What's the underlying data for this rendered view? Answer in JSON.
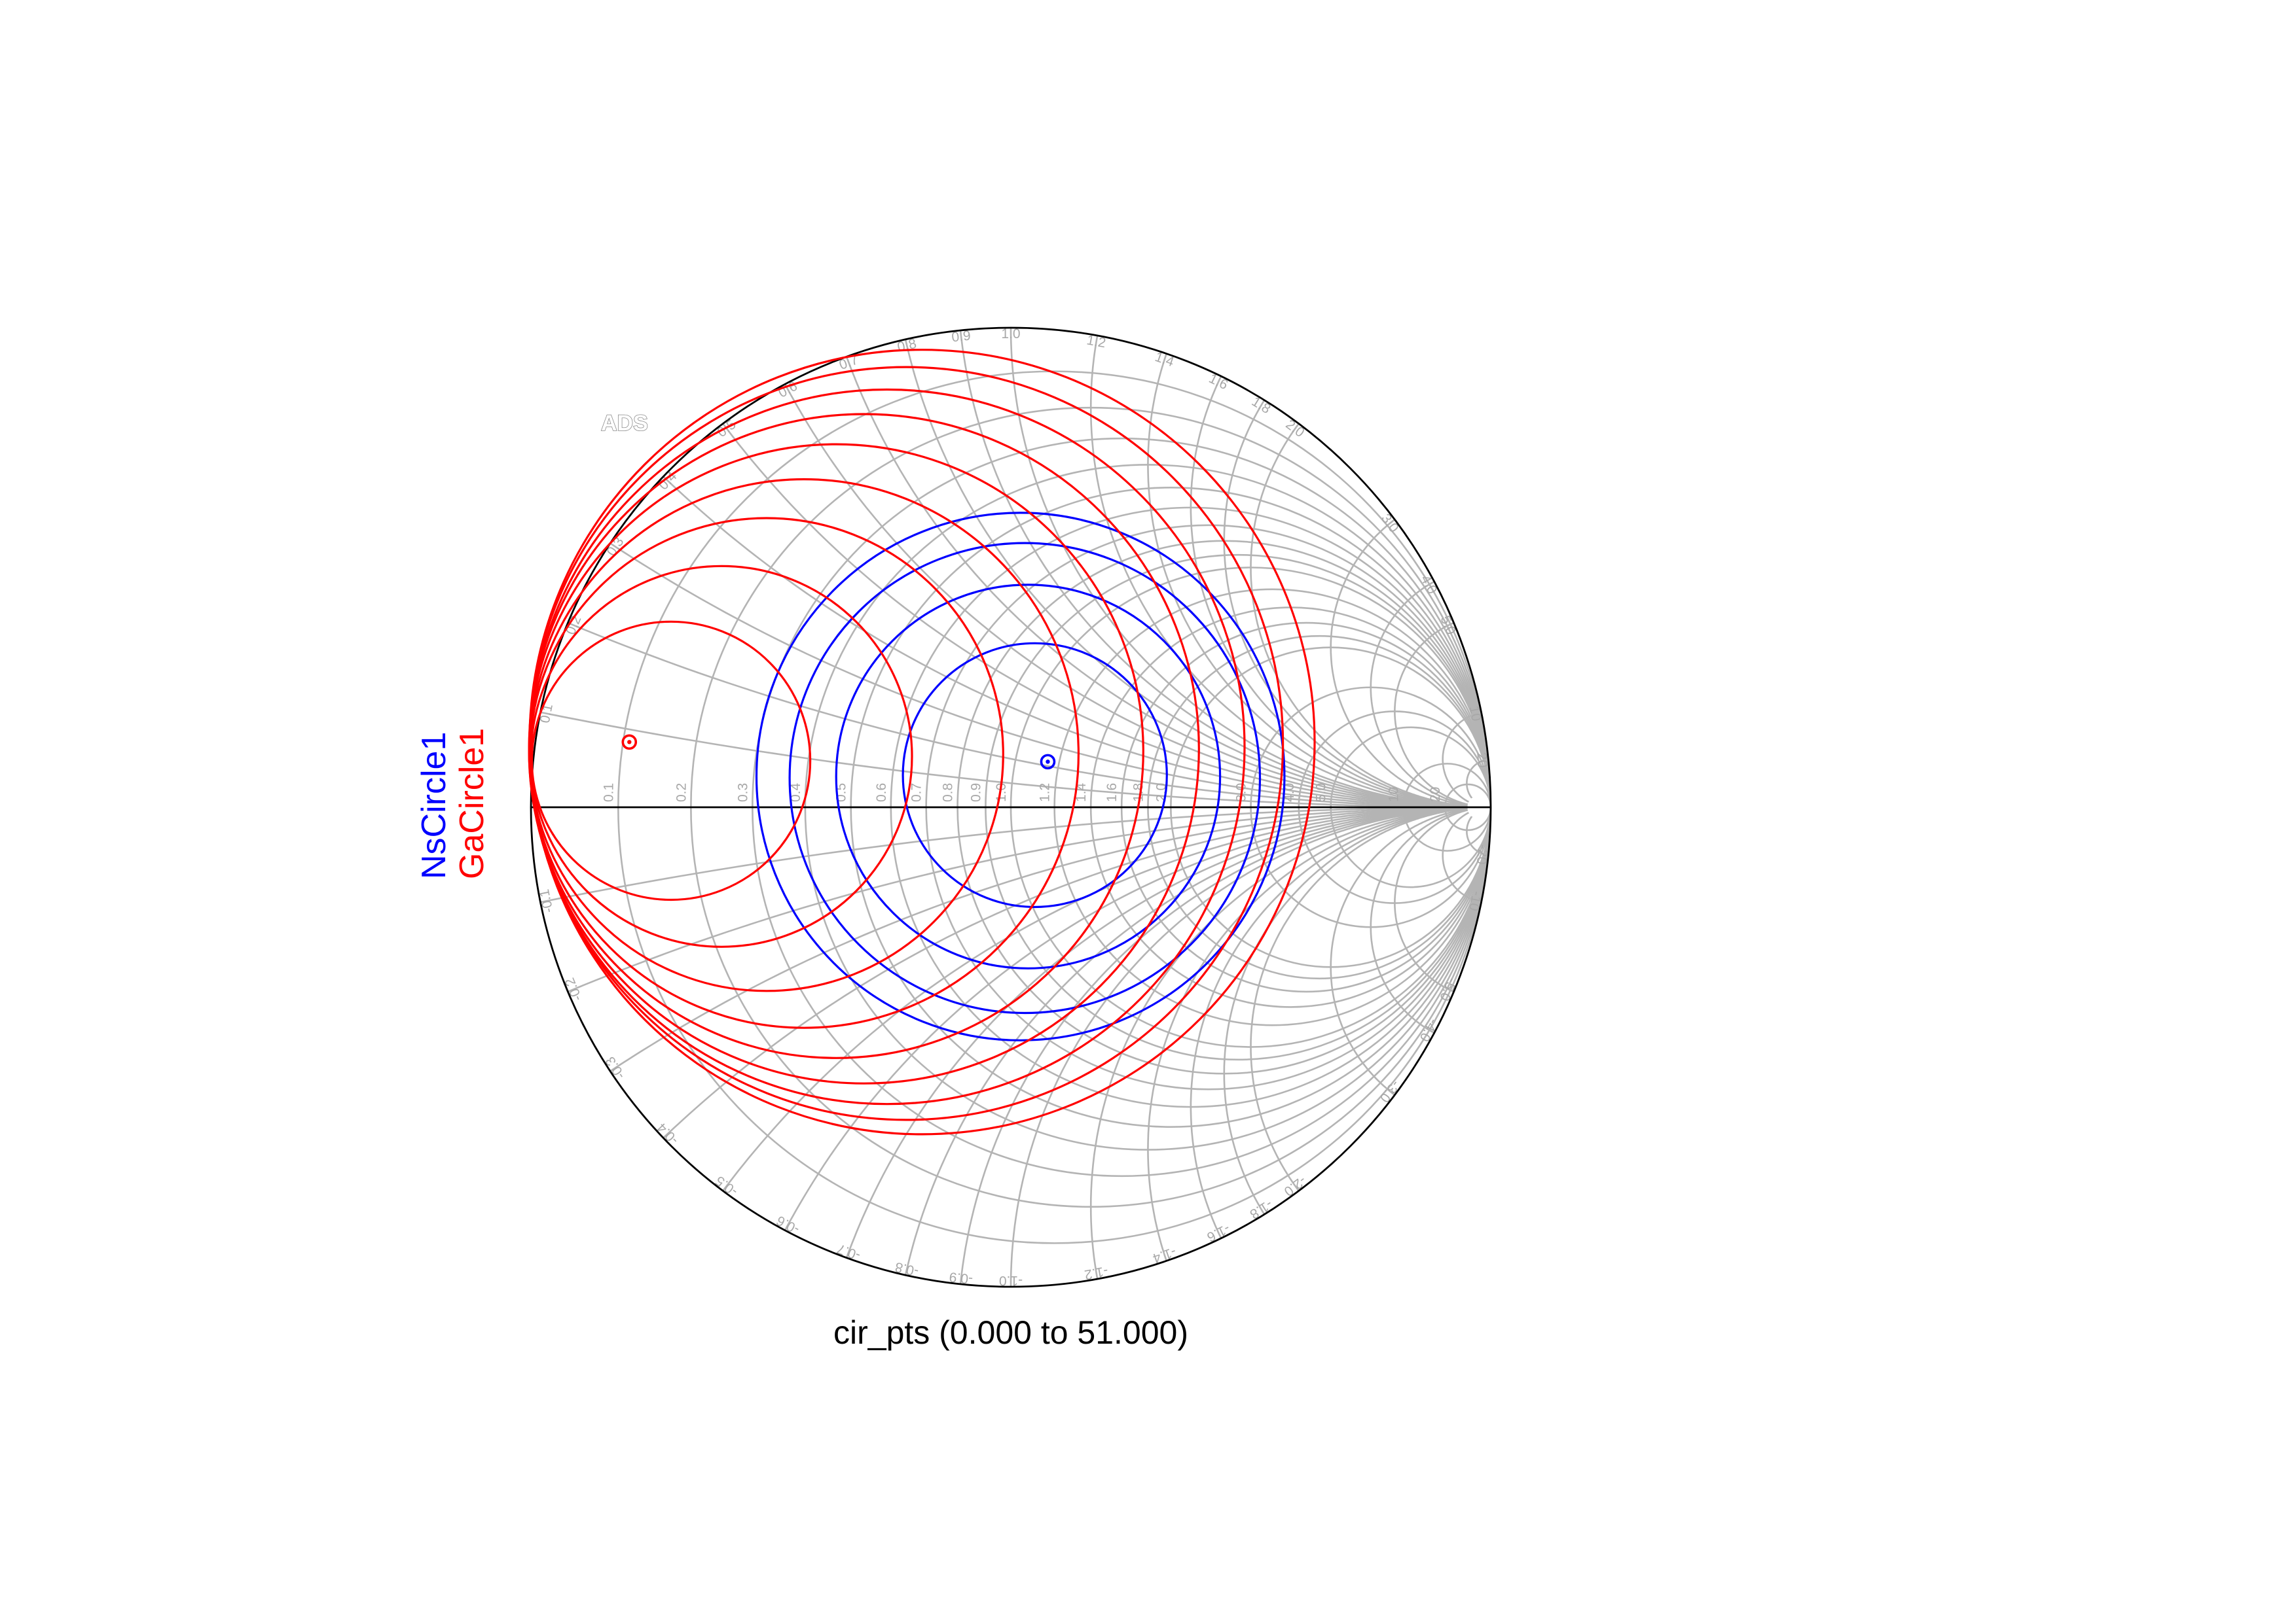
{
  "chart_data": {
    "type": "smith",
    "title": "",
    "watermark": "ADS",
    "xlabel": "cir_pts (0.000 to 51.000)",
    "sweep": {
      "name": "cir_pts",
      "start": 0.0,
      "stop": 51.0
    },
    "grid": true,
    "legend": {
      "position": "left",
      "orientation": "vertical"
    },
    "resistance_ticks": [
      "0.1",
      "0.2",
      "0.3",
      "0.4",
      "0.5",
      "0.6",
      "0.7",
      "0.8",
      "0.9",
      "1.0",
      "1.2",
      "1.4",
      "1.6",
      "1.8",
      "2.0",
      "3.0",
      "4.0",
      "5.0",
      "10",
      "20"
    ],
    "reactance_ticks": [
      "0.1",
      "0.2",
      "0.3",
      "0.4",
      "0.5",
      "0.6",
      "0.7",
      "0.8",
      "0.9",
      "1.0",
      "1.2",
      "1.4",
      "1.6",
      "1.8",
      "2.0",
      "3.0",
      "4.0",
      "5.0",
      "10",
      "20"
    ],
    "reactance_ticks_negative": [
      "-0.1",
      "-0.2",
      "-0.3",
      "-0.4",
      "-0.5",
      "-0.6",
      "-0.7",
      "-0.8",
      "-0.9",
      "-1.0",
      "-1.2",
      "-1.4",
      "-1.6",
      "-1.8",
      "-2.0",
      "-3.0",
      "-4.0",
      "-5.0",
      "-10",
      "-20"
    ],
    "series": [
      {
        "name": "NsCircle1",
        "color": "#0000ff",
        "optimum": [
          0.077,
          0.095
        ],
        "circles": [
          {
            "center": [
              0.05,
              0.067
            ],
            "radius": 0.275
          },
          {
            "center": [
              0.036,
              0.064
            ],
            "radius": 0.4
          },
          {
            "center": [
              0.029,
              0.061
            ],
            "radius": 0.49
          },
          {
            "center": [
              0.02,
              0.064
            ],
            "radius": 0.55
          }
        ]
      },
      {
        "name": "GaCircle1",
        "color": "#ff0000",
        "optimum": [
          -0.795,
          0.136
        ],
        "circles": [
          {
            "center": [
              -0.708,
              0.097
            ],
            "radius": 0.29
          },
          {
            "center": [
              -0.603,
              0.106
            ],
            "radius": 0.397
          },
          {
            "center": [
              -0.509,
              0.11
            ],
            "radius": 0.493
          },
          {
            "center": [
              -0.431,
              0.112
            ],
            "radius": 0.572
          },
          {
            "center": [
              -0.364,
              0.117
            ],
            "radius": 0.64
          },
          {
            "center": [
              -0.306,
              0.122
            ],
            "radius": 0.698
          },
          {
            "center": [
              -0.258,
              0.126
            ],
            "radius": 0.745
          },
          {
            "center": [
              -0.218,
              0.133
            ],
            "radius": 0.785
          },
          {
            "center": [
              -0.185,
              0.136
            ],
            "radius": 0.818
          }
        ]
      }
    ]
  }
}
